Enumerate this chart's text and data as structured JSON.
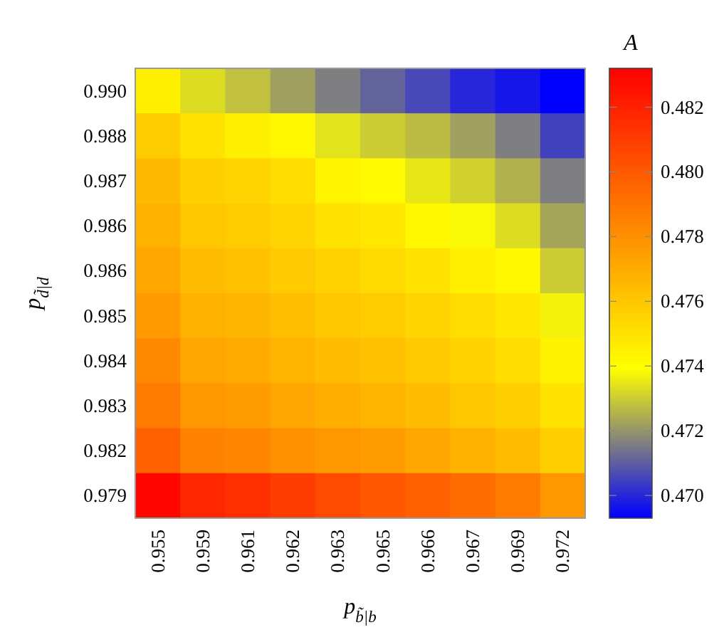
{
  "chart_data": {
    "type": "heatmap",
    "clabel": "A",
    "xlabel": "p$_{b̃|b}$",
    "ylabel": "p$_{d̃|d}$",
    "categories": [
      "0.955",
      "0.959",
      "0.961",
      "0.962",
      "0.963",
      "0.965",
      "0.966",
      "0.967",
      "0.969",
      "0.972"
    ],
    "y_categories": [
      "0.990",
      "0.988",
      "0.987",
      "0.986",
      "0.986",
      "0.985",
      "0.984",
      "0.983",
      "0.982",
      "0.979"
    ],
    "cells": [
      [
        0.4745,
        0.4733,
        0.4728,
        0.4722,
        0.4716,
        0.4711,
        0.4706,
        0.47,
        0.4697,
        0.4693
      ],
      [
        0.4758,
        0.475,
        0.4745,
        0.4742,
        0.4734,
        0.473,
        0.4727,
        0.4722,
        0.4716,
        0.4705
      ],
      [
        0.4765,
        0.4757,
        0.4755,
        0.4752,
        0.4743,
        0.4741,
        0.4735,
        0.4731,
        0.4725,
        0.4716
      ],
      [
        0.4768,
        0.476,
        0.4758,
        0.4755,
        0.475,
        0.4748,
        0.4742,
        0.4738,
        0.4733,
        0.4723
      ],
      [
        0.4772,
        0.4764,
        0.4762,
        0.4759,
        0.4756,
        0.4753,
        0.475,
        0.4745,
        0.4742,
        0.473
      ],
      [
        0.4776,
        0.4768,
        0.4766,
        0.4763,
        0.476,
        0.4758,
        0.4755,
        0.4752,
        0.4748,
        0.4737
      ],
      [
        0.4782,
        0.4772,
        0.477,
        0.4767,
        0.4764,
        0.4762,
        0.4759,
        0.4756,
        0.4752,
        0.4744
      ],
      [
        0.4788,
        0.4777,
        0.4775,
        0.4772,
        0.4769,
        0.4767,
        0.4764,
        0.476,
        0.4757,
        0.475
      ],
      [
        0.4797,
        0.4785,
        0.4783,
        0.478,
        0.4777,
        0.4775,
        0.4772,
        0.4768,
        0.4764,
        0.4757
      ],
      [
        0.483,
        0.4818,
        0.4815,
        0.481,
        0.4805,
        0.48,
        0.4797,
        0.4793,
        0.4787,
        0.4777
      ]
    ],
    "clim": [
      0.4693,
      0.4832
    ],
    "cticks": [
      {
        "value": 0.47,
        "label": "0.470"
      },
      0.472,
      0.474,
      0.476,
      0.478,
      {
        "value": 0.48,
        "label": "0.480"
      },
      0.482
    ],
    "colors": [
      "#0000ff",
      "#808080",
      "#ffff00",
      "#ffc000",
      "#ff8000",
      "#ff4000",
      "#ff0000"
    ]
  }
}
